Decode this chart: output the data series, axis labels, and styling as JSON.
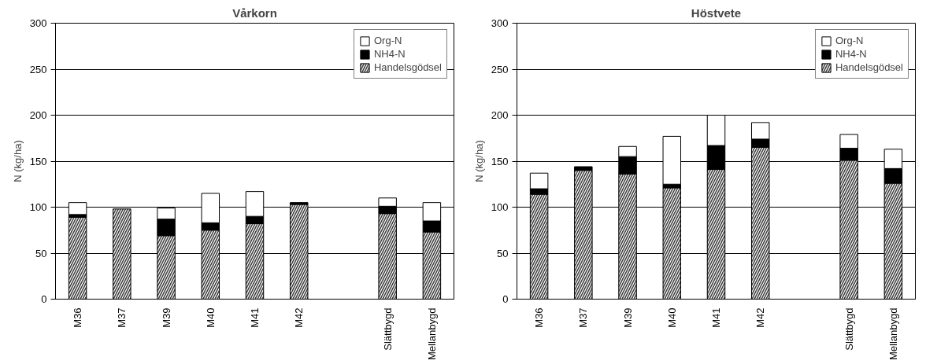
{
  "chart_data": [
    {
      "type": "bar",
      "title": "Vårkorn",
      "ylabel": "N (kg/ha)",
      "stacked": true,
      "categories": [
        "M36",
        "M37",
        "M39",
        "M40",
        "M41",
        "M42",
        null,
        "Slättbygd",
        "Mellanbygd"
      ],
      "ylim": [
        0,
        300
      ],
      "yticks": [
        0,
        50,
        100,
        150,
        200,
        250,
        300
      ],
      "grid": "y",
      "legend": "top right",
      "series": [
        {
          "name": "Handelsgödsel",
          "color": "#404040",
          "values": [
            89,
            98,
            69,
            75,
            82,
            103,
            null,
            93,
            73
          ]
        },
        {
          "name": "NH4-N",
          "color": "#000000",
          "values": [
            3,
            0,
            18,
            8,
            8,
            2,
            null,
            8,
            12
          ]
        },
        {
          "name": "Org-N",
          "color": "#ffffff",
          "values": [
            13,
            0,
            12,
            32,
            27,
            0,
            null,
            9,
            20
          ]
        }
      ]
    },
    {
      "type": "bar",
      "title": "Höstvete",
      "ylabel": "N (kg/ha)",
      "stacked": true,
      "categories": [
        "M36",
        "M37",
        "M39",
        "M40",
        "M41",
        "M42",
        null,
        "Slättbygd",
        "Mellanbygd"
      ],
      "ylim": [
        0,
        300
      ],
      "yticks": [
        0,
        50,
        100,
        150,
        200,
        250,
        300
      ],
      "grid": "y",
      "legend": "top right",
      "series": [
        {
          "name": "Handelsgödsel",
          "color": "#404040",
          "values": [
            114,
            140,
            136,
            121,
            141,
            165,
            null,
            151,
            126
          ]
        },
        {
          "name": "NH4-N",
          "color": "#000000",
          "values": [
            6,
            4,
            19,
            4,
            26,
            9,
            null,
            13,
            16
          ]
        },
        {
          "name": "Org-N",
          "color": "#ffffff",
          "values": [
            17,
            0,
            11,
            52,
            33,
            18,
            null,
            15,
            21
          ]
        }
      ]
    }
  ]
}
